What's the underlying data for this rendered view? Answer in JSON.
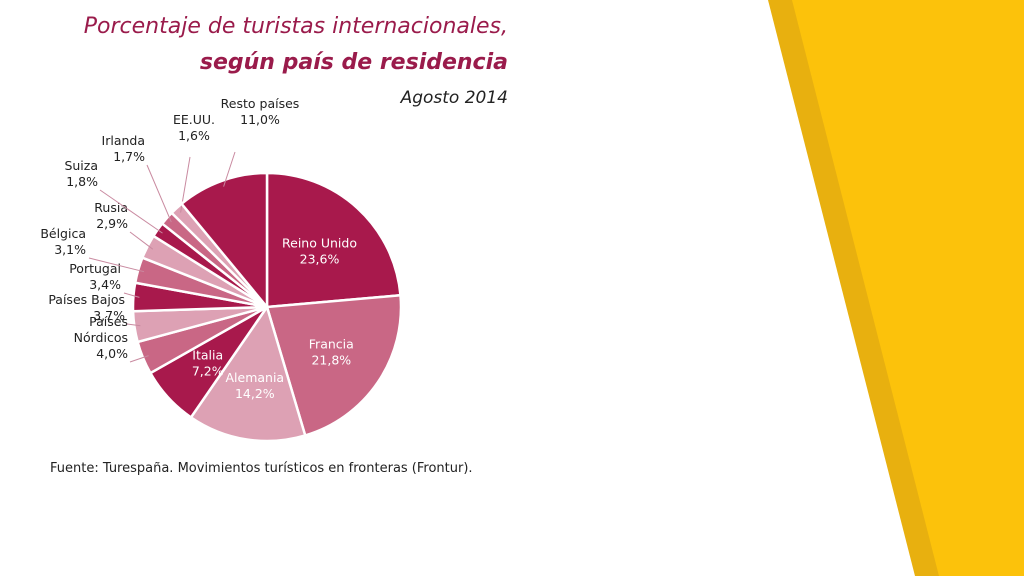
{
  "colors": {
    "accent_yellow": "#fcc20b",
    "accent_yellow_dark": "#e6b010",
    "title_color": "#9a1b4b",
    "text_color": "#222222"
  },
  "chart_data": {
    "type": "pie",
    "title": "Porcentaje de turistas internacionales,",
    "subtitle": "según país de residencia",
    "period": "Agosto 2014",
    "source": "Fuente: Turespaña. Movimientos turísticos en fronteras (Frontur).",
    "slices": [
      {
        "name": "Reino Unido",
        "value": 23.6,
        "label": "23,6%",
        "color": "#a8194c",
        "inside": true
      },
      {
        "name": "Francia",
        "value": 21.8,
        "label": "21,8%",
        "color": "#c96785",
        "inside": true
      },
      {
        "name": "Alemania",
        "value": 14.2,
        "label": "14,2%",
        "color": "#dda1b4",
        "inside": true
      },
      {
        "name": "Italia",
        "value": 7.2,
        "label": "7,2%",
        "color": "#a8194c",
        "inside": true
      },
      {
        "name": "Países Nórdicos",
        "value": 4.0,
        "label": "4,0%",
        "color": "#c96785",
        "inside": false
      },
      {
        "name": "Países Bajos",
        "value": 3.7,
        "label": "3,7%",
        "color": "#dda1b4",
        "inside": false
      },
      {
        "name": "Portugal",
        "value": 3.4,
        "label": "3,4%",
        "color": "#a8194c",
        "inside": false
      },
      {
        "name": "Bélgica",
        "value": 3.1,
        "label": "3,1%",
        "color": "#c96785",
        "inside": false
      },
      {
        "name": "Rusia",
        "value": 2.9,
        "label": "2,9%",
        "color": "#dda1b4",
        "inside": false
      },
      {
        "name": "Suiza",
        "value": 1.8,
        "label": "1,8%",
        "color": "#a8194c",
        "inside": false
      },
      {
        "name": "Irlanda",
        "value": 1.7,
        "label": "1,7%",
        "color": "#c96785",
        "inside": false
      },
      {
        "name": "EE.UU.",
        "value": 1.6,
        "label": "1,6%",
        "color": "#dda1b4",
        "inside": false
      },
      {
        "name": "Resto países",
        "value": 11.0,
        "label": "11,0%",
        "color": "#a8194c",
        "inside": false
      }
    ]
  }
}
